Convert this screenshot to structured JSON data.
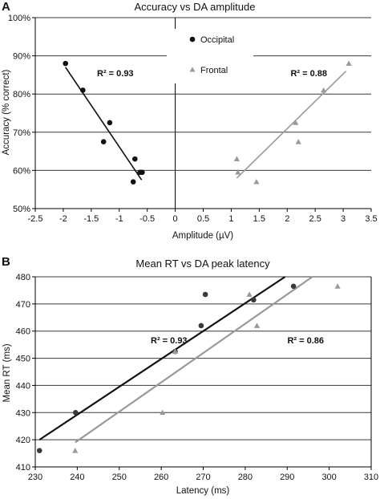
{
  "colors": {
    "occipital": "#111111",
    "frontal": "#999999",
    "occipital_marker_b": "#3a3a3a",
    "grid": "#3a3a3a"
  },
  "chart_data": [
    {
      "panel": "A",
      "type": "scatter",
      "title": "Accuracy vs DA amplitude",
      "xlabel": "Amplitude (µV)",
      "ylabel": "Accuracy (% correct)",
      "xlim": [
        -2.5,
        3.5
      ],
      "ylim": [
        50,
        100
      ],
      "xticks": [
        "-2.5",
        "-2",
        "-1.5",
        "-1",
        "-0.5",
        "0",
        "0.5",
        "1",
        "1.5",
        "2",
        "2.5",
        "3",
        "3.5"
      ],
      "yticks": [
        "50%",
        "60%",
        "70%",
        "80%",
        "90%",
        "100%"
      ],
      "grid": "horizontal",
      "legend_position": "top-center",
      "series": [
        {
          "name": "Occipital",
          "marker": "circle",
          "x": [
            -1.96,
            -1.65,
            -1.28,
            -1.17,
            -0.75,
            -0.72,
            -0.63,
            -0.59
          ],
          "y": [
            88.0,
            81.0,
            67.5,
            72.5,
            57.0,
            63.0,
            59.5,
            59.5
          ],
          "trend": {
            "x": [
              -1.96,
              -0.6
            ],
            "y": [
              87.0,
              57.5
            ]
          },
          "r2_label": "R² = 0.93"
        },
        {
          "name": "Frontal",
          "marker": "triangle",
          "x": [
            1.1,
            1.12,
            1.45,
            2.15,
            2.2,
            2.65,
            3.1
          ],
          "y": [
            63.0,
            59.5,
            57.0,
            72.5,
            67.5,
            81.0,
            88.0
          ],
          "trend": {
            "x": [
              1.1,
              3.05
            ],
            "y": [
              58.0,
              86.0
            ]
          },
          "r2_label": "R² = 0.88"
        }
      ]
    },
    {
      "panel": "B",
      "type": "scatter",
      "title": "Mean RT vs DA peak latency",
      "xlabel": "Latency (ms)",
      "ylabel": "Mean RT (ms)",
      "xlim": [
        230,
        310
      ],
      "ylim": [
        410,
        480
      ],
      "xticks": [
        "230",
        "240",
        "250",
        "260",
        "270",
        "280",
        "290",
        "300",
        "310"
      ],
      "yticks": [
        "410",
        "420",
        "430",
        "440",
        "450",
        "460",
        "470",
        "480"
      ],
      "grid": "horizontal",
      "series": [
        {
          "name": "Occipital",
          "marker": "circle",
          "x": [
            231,
            239.6,
            263.3,
            269.5,
            270.5,
            282,
            291.5
          ],
          "y": [
            416,
            430,
            452.5,
            462,
            473.5,
            471.5,
            476.5
          ],
          "trend": {
            "x": [
              231,
              289.5
            ],
            "y": [
              420,
              480
            ]
          },
          "r2_label": "R² = 0.93"
        },
        {
          "name": "Frontal",
          "marker": "triangle",
          "x": [
            239.5,
            260.3,
            263.3,
            281,
            282.8,
            302
          ],
          "y": [
            416,
            430,
            452.5,
            473.5,
            462,
            476.5
          ],
          "trend": {
            "x": [
              239.5,
              296
            ],
            "y": [
              419,
              480
            ]
          },
          "r2_label": "R² = 0.86"
        }
      ]
    }
  ]
}
